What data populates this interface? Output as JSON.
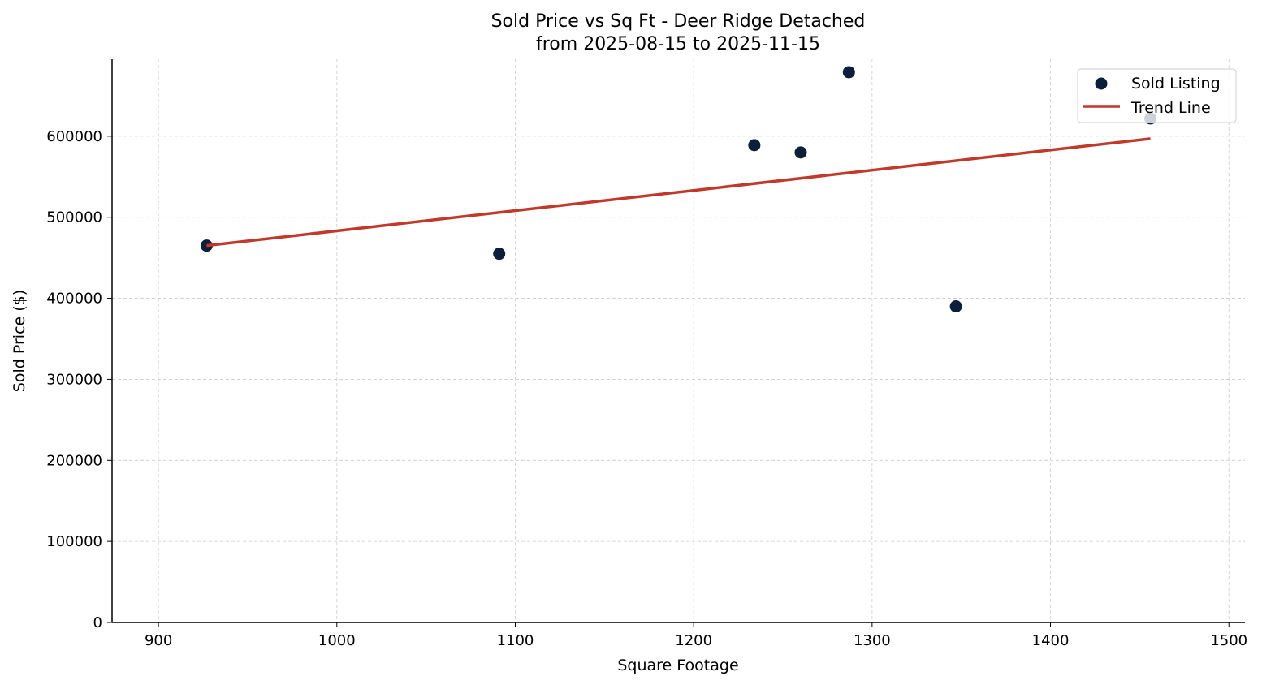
{
  "chart_data": {
    "type": "scatter",
    "title": "Sold Price vs Sq Ft - Deer Ridge Detached",
    "subtitle": "from 2025-08-15 to 2025-11-15",
    "xlabel": "Square Footage",
    "ylabel": "Sold Price ($)",
    "xlim": [
      874,
      1509
    ],
    "ylim": [
      0,
      695000
    ],
    "xticks": [
      900,
      1000,
      1100,
      1200,
      1300,
      1400,
      1500
    ],
    "yticks": [
      0,
      100000,
      200000,
      300000,
      400000,
      500000,
      600000
    ],
    "grid": true,
    "legend_position": "top-right",
    "series": [
      {
        "name": "Sold Listing",
        "type": "scatter",
        "color": "#0b1f3a",
        "points": [
          {
            "x": 927,
            "y": 465000
          },
          {
            "x": 1091,
            "y": 455000
          },
          {
            "x": 1234,
            "y": 589000
          },
          {
            "x": 1260,
            "y": 580000
          },
          {
            "x": 1287,
            "y": 679000
          },
          {
            "x": 1347,
            "y": 390000
          },
          {
            "x": 1456,
            "y": 622000
          }
        ]
      },
      {
        "name": "Trend Line",
        "type": "line",
        "color": "#c0392b",
        "points": [
          {
            "x": 927,
            "y": 465000
          },
          {
            "x": 1456,
            "y": 597000
          }
        ]
      }
    ]
  }
}
